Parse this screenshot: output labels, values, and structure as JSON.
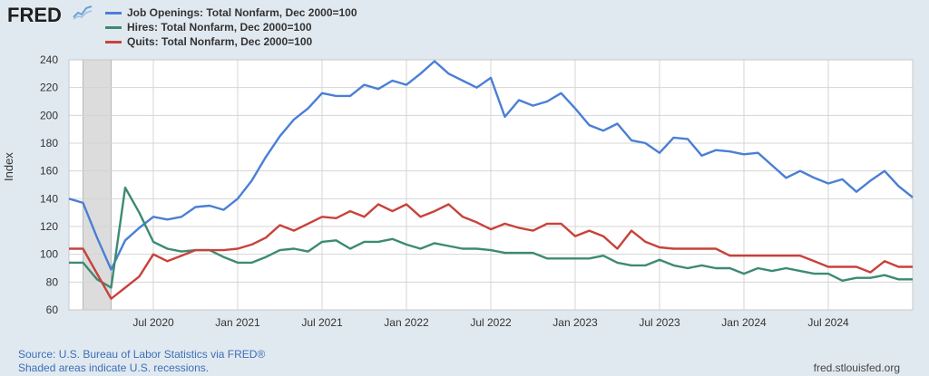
{
  "logo": {
    "text": "FRED"
  },
  "legend": [
    {
      "label": "Job Openings: Total Nonfarm, Dec 2000=100",
      "color": "#4a7fd4"
    },
    {
      "label": "Hires: Total Nonfarm, Dec 2000=100",
      "color": "#3d8a72"
    },
    {
      "label": "Quits: Total Nonfarm, Dec 2000=100",
      "color": "#c8423a"
    }
  ],
  "footer": {
    "source": "Source: U.S. Bureau of Labor Statistics via FRED®",
    "recession_note": "Shaded areas indicate U.S. recessions.",
    "url": "fred.stlouisfed.org"
  },
  "chart_data": {
    "type": "line",
    "ylabel": "Index",
    "ylim": [
      60,
      240
    ],
    "yticks": [
      60,
      80,
      100,
      120,
      140,
      160,
      180,
      200,
      220,
      240
    ],
    "x": [
      "2020-01",
      "2020-02",
      "2020-03",
      "2020-04",
      "2020-05",
      "2020-06",
      "2020-07",
      "2020-08",
      "2020-09",
      "2020-10",
      "2020-11",
      "2020-12",
      "2021-01",
      "2021-02",
      "2021-03",
      "2021-04",
      "2021-05",
      "2021-06",
      "2021-07",
      "2021-08",
      "2021-09",
      "2021-10",
      "2021-11",
      "2021-12",
      "2022-01",
      "2022-02",
      "2022-03",
      "2022-04",
      "2022-05",
      "2022-06",
      "2022-07",
      "2022-08",
      "2022-09",
      "2022-10",
      "2022-11",
      "2022-12",
      "2023-01",
      "2023-02",
      "2023-03",
      "2023-04",
      "2023-05",
      "2023-06",
      "2023-07",
      "2023-08",
      "2023-09",
      "2023-10",
      "2023-11",
      "2023-12",
      "2024-01",
      "2024-02",
      "2024-03",
      "2024-04",
      "2024-05",
      "2024-06",
      "2024-07",
      "2024-08",
      "2024-09",
      "2024-10",
      "2024-11",
      "2024-12",
      "2025-01"
    ],
    "xticks": [
      {
        "label": "Jul 2020",
        "date": "2020-07"
      },
      {
        "label": "Jan 2021",
        "date": "2021-01"
      },
      {
        "label": "Jul 2021",
        "date": "2021-07"
      },
      {
        "label": "Jan 2022",
        "date": "2022-01"
      },
      {
        "label": "Jul 2022",
        "date": "2022-07"
      },
      {
        "label": "Jan 2023",
        "date": "2023-01"
      },
      {
        "label": "Jul 2023",
        "date": "2023-07"
      },
      {
        "label": "Jan 2024",
        "date": "2024-01"
      },
      {
        "label": "Jul 2024",
        "date": "2024-07"
      }
    ],
    "recession": {
      "start": "2020-02",
      "end": "2020-04"
    },
    "grid": true,
    "series": [
      {
        "name": "Job Openings: Total Nonfarm, Dec 2000=100",
        "color": "#4a7fd4",
        "values": [
          140,
          137,
          112,
          89,
          110,
          119,
          127,
          125,
          127,
          134,
          135,
          132,
          140,
          153,
          170,
          185,
          197,
          205,
          216,
          214,
          214,
          222,
          219,
          225,
          222,
          230,
          239,
          230,
          225,
          220,
          227,
          199,
          211,
          207,
          210,
          216,
          205,
          193,
          189,
          194,
          182,
          180,
          173,
          184,
          183,
          171,
          175,
          174,
          172,
          173,
          164,
          155,
          160,
          155,
          151,
          154,
          145,
          153,
          160,
          149,
          141
        ]
      },
      {
        "name": "Hires: Total Nonfarm, Dec 2000=100",
        "color": "#3d8a72",
        "values": [
          94,
          94,
          82,
          76,
          148,
          130,
          109,
          104,
          102,
          103,
          103,
          98,
          94,
          94,
          98,
          103,
          104,
          102,
          109,
          110,
          104,
          109,
          109,
          111,
          107,
          104,
          108,
          106,
          104,
          104,
          103,
          101,
          101,
          101,
          97,
          97,
          97,
          97,
          99,
          94,
          92,
          92,
          96,
          92,
          90,
          92,
          90,
          90,
          86,
          90,
          88,
          90,
          88,
          86,
          86,
          81,
          83,
          83,
          85,
          82,
          82
        ]
      },
      {
        "name": "Quits: Total Nonfarm, Dec 2000=100",
        "color": "#c8423a",
        "values": [
          104,
          104,
          86,
          68,
          76,
          84,
          100,
          95,
          99,
          103,
          103,
          103,
          104,
          107,
          112,
          121,
          117,
          122,
          127,
          126,
          131,
          127,
          136,
          131,
          136,
          127,
          131,
          136,
          127,
          123,
          118,
          122,
          119,
          117,
          122,
          122,
          113,
          117,
          113,
          104,
          117,
          109,
          105,
          104,
          104,
          104,
          104,
          99,
          99,
          99,
          99,
          99,
          99,
          95,
          91,
          91,
          91,
          87,
          95,
          91,
          91
        ]
      }
    ]
  }
}
